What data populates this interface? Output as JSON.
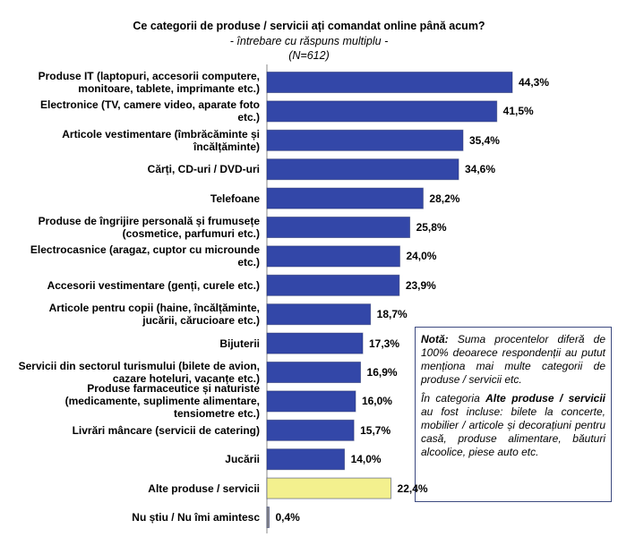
{
  "chart_data": {
    "type": "bar",
    "orientation": "horizontal",
    "title": "Ce categorii de produse / servicii ați comandat online până acum?",
    "subtitle": "- întrebare cu răspuns multiplu -",
    "sample": "(N=612)",
    "categories": [
      "Produse IT (laptopuri, accesorii computere, monitoare, tablete, imprimante etc.)",
      "Electronice (TV, camere video, aparate foto etc.)",
      "Articole vestimentare (îmbrăcăminte și încălțăminte)",
      "Cărți, CD-uri / DVD-uri",
      "Telefoane",
      "Produse de îngrijire personală și frumusețe (cosmetice, parfumuri etc.)",
      "Electrocasnice (aragaz, cuptor cu microunde etc.)",
      "Accesorii vestimentare (genți, curele etc.)",
      "Articole pentru copii (haine, încălțăminte, jucării, cărucioare etc.)",
      "Bijuterii",
      "Servicii din sectorul turismului (bilete de avion, cazare hoteluri, vacanțe etc.)",
      "Produse farmaceutice și naturiste (medicamente, suplimente alimentare, tensiometre etc.)",
      "Livrări mâncare (servicii de catering)",
      "Jucării",
      "Alte produse / servicii",
      "Nu știu / Nu îmi amintesc"
    ],
    "values": [
      44.3,
      41.5,
      35.4,
      34.6,
      28.2,
      25.8,
      24.0,
      23.9,
      18.7,
      17.3,
      16.9,
      16.0,
      15.7,
      14.0,
      22.4,
      0.4
    ],
    "value_labels": [
      "44,3%",
      "41,5%",
      "35,4%",
      "34,6%",
      "28,2%",
      "25,8%",
      "24,0%",
      "23,9%",
      "18,7%",
      "17,3%",
      "16,9%",
      "16,0%",
      "15,7%",
      "14,0%",
      "22,4%",
      "0,4%"
    ],
    "colors": [
      "#3347a8",
      "#3347a8",
      "#3347a8",
      "#3347a8",
      "#3347a8",
      "#3347a8",
      "#3347a8",
      "#3347a8",
      "#3347a8",
      "#3347a8",
      "#3347a8",
      "#3347a8",
      "#3347a8",
      "#3347a8",
      "#f3f08e",
      "#8a8a8a"
    ],
    "note": [
      [
        {
          "text": "Notă:",
          "bold": true
        },
        {
          "text": " Suma procentelor diferă de 100% deoarece respondenții au putut menționa mai multe categorii de produse / servicii etc.",
          "bold": false
        }
      ],
      [
        {
          "text": "În categoria ",
          "bold": false
        },
        {
          "text": "Alte produse / servicii",
          "bold": true
        },
        {
          "text": " au fost incluse: bilete la concerte, mobilier / articole și decorațiuni pentru casă, produse alimentare, băuturi alcoolice, piese auto etc.",
          "bold": false
        }
      ]
    ]
  }
}
